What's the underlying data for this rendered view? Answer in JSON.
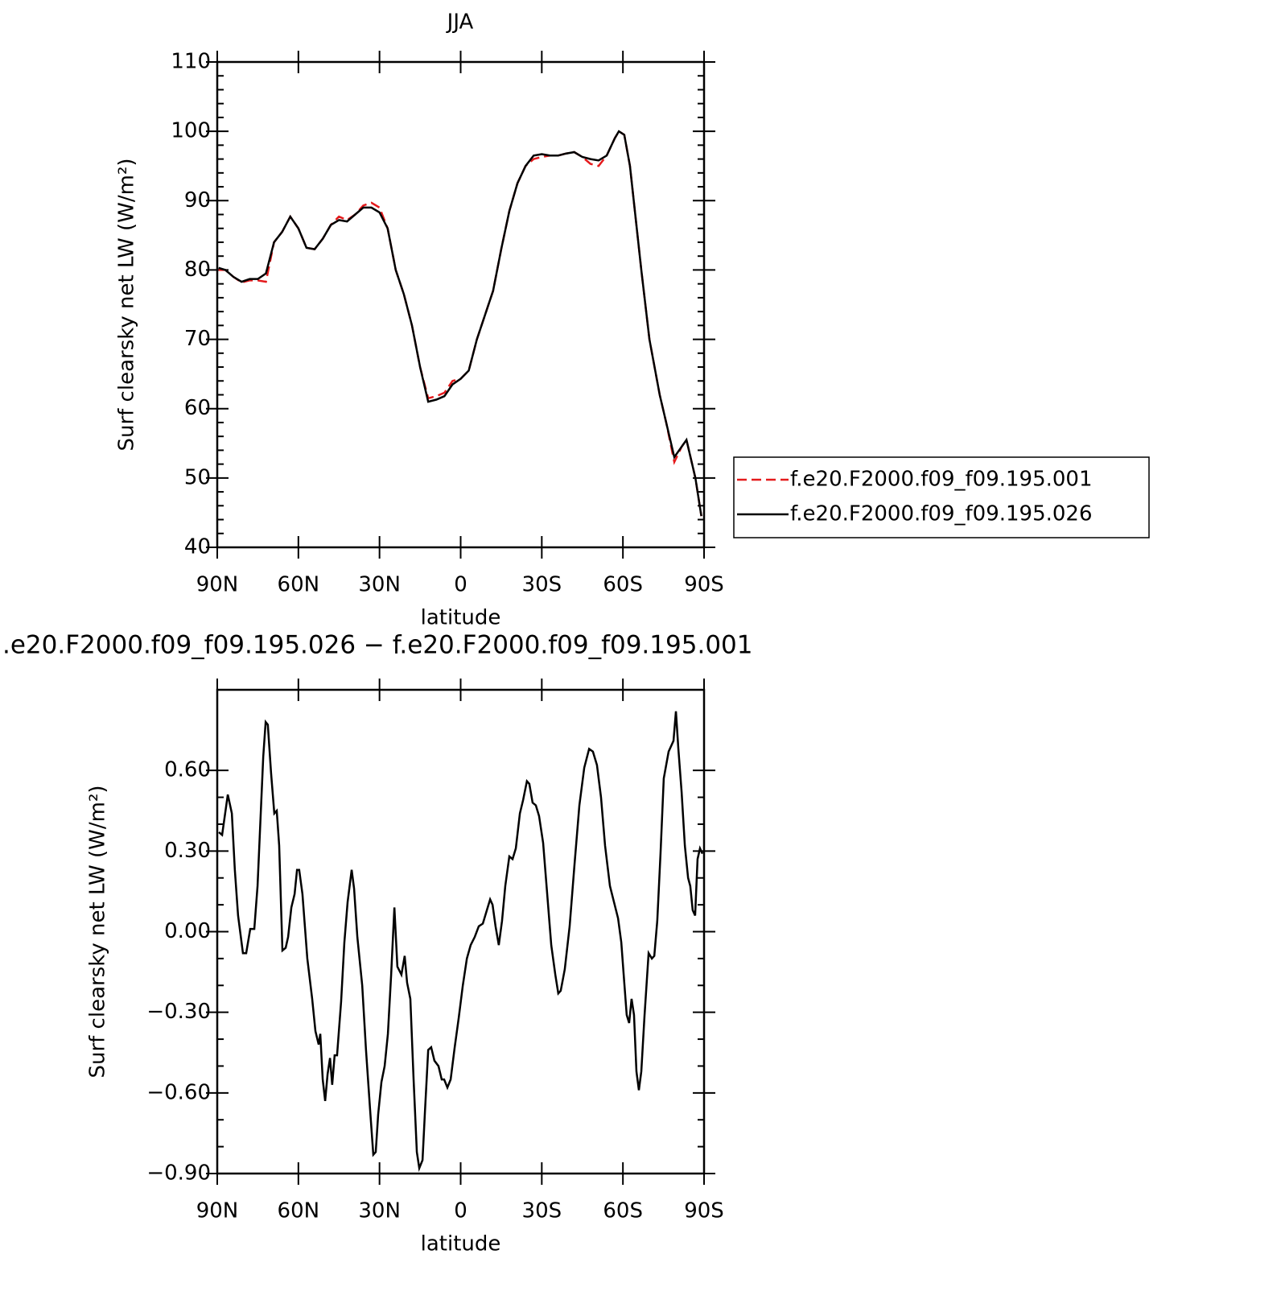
{
  "chart_data": [
    {
      "type": "line",
      "title": "JJA",
      "xlabel": "latitude",
      "ylabel": "Surf clearsky net LW (W/m²)",
      "xlim": [
        90,
        -90
      ],
      "xticks": [
        {
          "value": 90,
          "label": "90N"
        },
        {
          "value": 60,
          "label": "60N"
        },
        {
          "value": 30,
          "label": "30N"
        },
        0,
        {
          "value": -30,
          "label": "30S"
        },
        {
          "value": -60,
          "label": "60S"
        },
        {
          "value": -90,
          "label": "90S"
        }
      ],
      "ylim": [
        40,
        110
      ],
      "yticks": [
        40,
        50,
        60,
        70,
        80,
        90,
        100,
        110
      ],
      "legend": "right",
      "x": [
        89.5,
        87,
        84,
        81,
        78,
        75,
        72,
        69,
        66,
        63,
        60,
        57,
        54,
        51,
        48,
        45,
        42,
        39,
        36,
        33,
        30,
        27,
        24,
        21,
        18,
        15,
        12,
        9,
        6,
        3,
        0,
        -3,
        -6,
        -9,
        -12,
        -15,
        -18,
        -21,
        -24,
        -27,
        -30,
        -33,
        -36,
        -39,
        -42,
        -45,
        -48,
        -51,
        -54,
        -57,
        -58.5,
        -60.5,
        -62.6,
        -66.8,
        -69.8,
        -73.6,
        -76,
        -79,
        -81.7,
        -83.5,
        -86.8,
        -89
      ],
      "series": [
        {
          "name": "f.e20.F2000.f09_f09.195.001",
          "color": "#e41a1c",
          "linestyle": "dashed",
          "values": [
            80,
            80,
            79,
            78.2,
            78.5,
            78.5,
            78.3,
            84,
            85.5,
            87.7,
            86,
            83.2,
            83,
            84.5,
            86.5,
            87.7,
            87.2,
            88,
            89.3,
            89.7,
            89,
            86,
            80,
            76.5,
            72,
            66,
            61.5,
            61.8,
            62.3,
            64,
            64.3,
            65.5,
            70,
            73.5,
            77,
            83,
            88.5,
            92.5,
            95,
            96,
            96.3,
            96.5,
            96.5,
            96.8,
            97,
            96.3,
            95.3,
            95,
            96.5,
            99,
            100,
            99.5,
            95,
            80,
            70,
            62,
            58,
            52.3,
            54.5,
            55.5,
            50,
            44.5
          ]
        },
        {
          "name": "f.e20.F2000.f09_f09.195.026",
          "color": "#000000",
          "linestyle": "solid",
          "values": [
            80.3,
            80,
            79,
            78.3,
            78.7,
            78.7,
            79.5,
            84,
            85.5,
            87.7,
            86,
            83.2,
            83,
            84.5,
            86.5,
            87.2,
            87,
            88,
            89,
            89,
            88.3,
            86,
            80,
            76.5,
            72,
            66,
            61,
            61.3,
            61.8,
            63.5,
            64.3,
            65.5,
            70,
            73.5,
            77,
            83,
            88.5,
            92.5,
            95,
            96.5,
            96.7,
            96.5,
            96.5,
            96.8,
            97,
            96.3,
            96,
            95.8,
            96.5,
            99,
            100,
            99.5,
            95,
            80,
            70,
            62,
            58,
            53,
            54.5,
            55.5,
            50,
            44.5
          ]
        }
      ]
    },
    {
      "type": "line",
      "title": ".e20.F2000.f09_f09.195.026 − f.e20.F2000.f09_f09.195.001",
      "xlabel": "latitude",
      "ylabel": "Surf clearsky net LW (W/m²)",
      "xlim": [
        90,
        -90
      ],
      "xticks": [
        {
          "value": 90,
          "label": "90N"
        },
        {
          "value": 60,
          "label": "60N"
        },
        {
          "value": 30,
          "label": "30N"
        },
        0,
        {
          "value": -30,
          "label": "30S"
        },
        {
          "value": -60,
          "label": "60S"
        },
        {
          "value": -90,
          "label": "90S"
        }
      ],
      "ylim": [
        -0.9,
        0.9
      ],
      "yticks": [
        {
          "value": -0.9,
          "label": "−0.90"
        },
        {
          "value": -0.6,
          "label": "−0.60"
        },
        {
          "value": -0.3,
          "label": "−0.30"
        },
        {
          "value": 0,
          "label": "0.00"
        },
        {
          "value": 0.3,
          "label": "0.30"
        },
        {
          "value": 0.6,
          "label": "0.60"
        }
      ],
      "x": [
        89.4,
        88.2,
        86.1,
        84.6,
        83.5,
        82.3,
        80.5,
        79.3,
        77.8,
        76.3,
        75.1,
        73.0,
        72.1,
        71.3,
        70.1,
        68.9,
        68.0,
        67.1,
        65.9,
        64.7,
        63.8,
        62.6,
        61.4,
        60.5,
        59.7,
        58.5,
        56.7,
        54.9,
        53.7,
        52.5,
        51.9,
        51.0,
        50.1,
        49.2,
        48.3,
        47.5,
        46.6,
        45.7,
        44.2,
        43.0,
        41.8,
        40.3,
        39.4,
        38.2,
        36.4,
        35.0,
        33.5,
        32.3,
        31.4,
        30.5,
        29.3,
        28.1,
        26.9,
        25.7,
        24.5,
        23.4,
        21.9,
        20.7,
        19.8,
        18.6,
        17.4,
        16.2,
        15.3,
        14.1,
        13.2,
        12.0,
        10.9,
        9.7,
        8.2,
        7.0,
        6.1,
        4.9,
        3.7,
        2.2,
        0.7,
        -0.8,
        -2.3,
        -3.7,
        -5.2,
        -6.7,
        -8.2,
        -9.7,
        -10.9,
        -11.8,
        -12.9,
        -14.1,
        -15.3,
        -16.5,
        -18.0,
        -19.2,
        -20.4,
        -21.9,
        -23.1,
        -24.5,
        -25.4,
        -26.6,
        -27.8,
        -29.0,
        -30.5,
        -32.0,
        -33.5,
        -35.0,
        -36.1,
        -37.0,
        -38.5,
        -40.3,
        -42.1,
        -43.9,
        -45.7,
        -47.5,
        -48.9,
        -50.4,
        -51.9,
        -53.4,
        -55.2,
        -56.7,
        -58.2,
        -59.4,
        -60.5,
        -61.4,
        -62.3,
        -63.2,
        -64.1,
        -65.0,
        -65.9,
        -66.8,
        -68.0,
        -69.5,
        -70.7,
        -71.6,
        -72.7,
        -73.9,
        -75.1,
        -76.9,
        -78.7,
        -79.6,
        -80.5,
        -81.7,
        -82.9,
        -84.1,
        -84.9,
        -85.8,
        -86.7,
        -87.6,
        -88.5,
        -89.4
      ],
      "series": [
        {
          "color": "#000000",
          "linestyle": "solid",
          "values": [
            0.37,
            0.36,
            0.51,
            0.44,
            0.23,
            0.06,
            -0.08,
            -0.08,
            0.01,
            0.01,
            0.17,
            0.65,
            0.78,
            0.77,
            0.59,
            0.44,
            0.45,
            0.32,
            -0.07,
            -0.06,
            -0.02,
            0.09,
            0.14,
            0.23,
            0.23,
            0.14,
            -0.1,
            -0.25,
            -0.37,
            -0.42,
            -0.38,
            -0.55,
            -0.63,
            -0.53,
            -0.47,
            -0.57,
            -0.46,
            -0.46,
            -0.26,
            -0.04,
            0.11,
            0.23,
            0.16,
            -0.02,
            -0.2,
            -0.44,
            -0.66,
            -0.83,
            -0.82,
            -0.68,
            -0.56,
            -0.5,
            -0.38,
            -0.16,
            0.09,
            -0.13,
            -0.16,
            -0.09,
            -0.19,
            -0.25,
            -0.55,
            -0.82,
            -0.88,
            -0.85,
            -0.67,
            -0.44,
            -0.43,
            -0.48,
            -0.5,
            -0.55,
            -0.55,
            -0.58,
            -0.55,
            -0.43,
            -0.32,
            -0.2,
            -0.1,
            -0.05,
            -0.02,
            0.02,
            0.03,
            0.08,
            0.12,
            0.1,
            0.02,
            -0.05,
            0.04,
            0.17,
            0.28,
            0.27,
            0.31,
            0.44,
            0.49,
            0.56,
            0.55,
            0.48,
            0.47,
            0.43,
            0.33,
            0.14,
            -0.05,
            -0.16,
            -0.23,
            -0.22,
            -0.14,
            0.02,
            0.25,
            0.47,
            0.61,
            0.68,
            0.67,
            0.62,
            0.5,
            0.32,
            0.17,
            0.11,
            0.05,
            -0.04,
            -0.19,
            -0.31,
            -0.34,
            -0.25,
            -0.31,
            -0.52,
            -0.59,
            -0.52,
            -0.31,
            -0.08,
            -0.1,
            -0.09,
            0.04,
            0.29,
            0.57,
            0.67,
            0.71,
            0.82,
            0.68,
            0.52,
            0.32,
            0.2,
            0.17,
            0.08,
            0.06,
            0.27,
            0.31,
            0.29
          ]
        }
      ]
    }
  ]
}
